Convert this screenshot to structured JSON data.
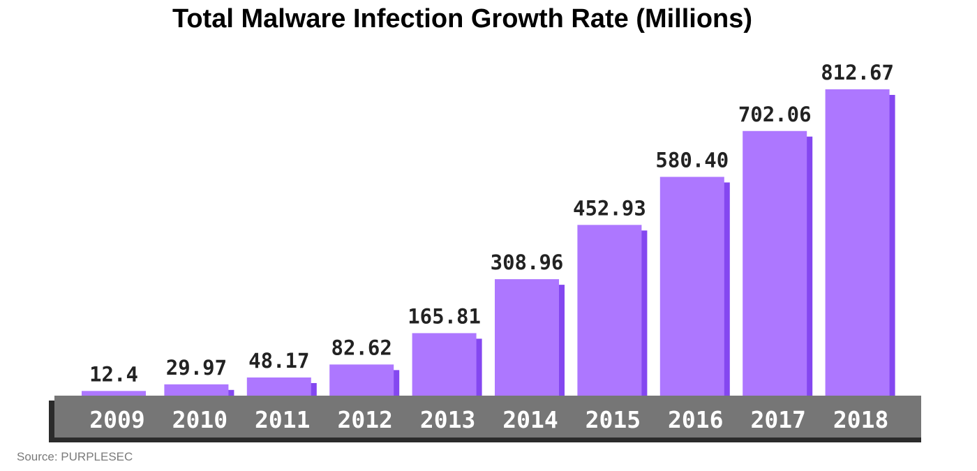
{
  "chart_data": {
    "type": "bar",
    "title": "Total Malware Infection Growth Rate (Millions)",
    "xlabel": "",
    "ylabel": "",
    "categories": [
      "2009",
      "2010",
      "2011",
      "2012",
      "2013",
      "2014",
      "2015",
      "2016",
      "2017",
      "2018"
    ],
    "values": [
      12.4,
      29.97,
      48.17,
      82.62,
      165.81,
      308.96,
      452.93,
      580.4,
      702.06,
      812.67
    ],
    "value_labels": [
      "12.4",
      "29.97",
      "48.17",
      "82.62",
      "165.81",
      "308.96",
      "452.93",
      "580.40",
      "702.06",
      "812.67"
    ],
    "ylim": [
      0,
      812.67
    ],
    "grid": false,
    "legend": "none"
  },
  "source": "Source: PURPLESEC",
  "colors": {
    "bar": "#ad77ff",
    "bar_shadow": "#8447f0",
    "axis_band": "#767676",
    "axis_band_shadow": "#2b2b2b",
    "value_text": "#222222",
    "tick_text": "#ffffff"
  }
}
